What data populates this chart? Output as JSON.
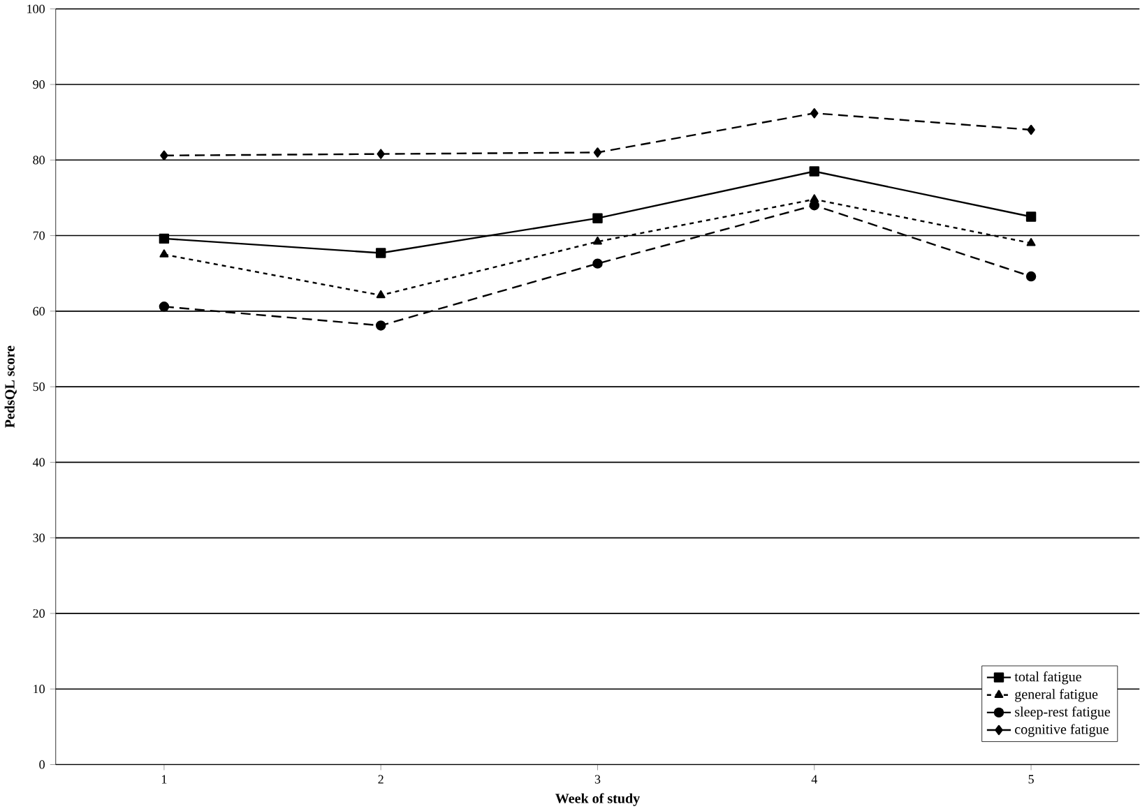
{
  "chart_data": {
    "type": "line",
    "xlabel": "Week of study",
    "ylabel": "PedsQL score",
    "categories": [
      "1",
      "2",
      "3",
      "4",
      "5"
    ],
    "ylim": [
      0,
      100
    ],
    "yticks": [
      0,
      10,
      20,
      30,
      40,
      50,
      60,
      70,
      80,
      90,
      100
    ],
    "grid": "y",
    "legend": "bottom right",
    "series": [
      {
        "name": "total fatigue",
        "color": "#000000",
        "marker": "square",
        "line_style": "solid",
        "values": [
          69.6,
          67.7,
          72.3,
          78.5,
          72.5
        ]
      },
      {
        "name": "general fatigue",
        "color": "#000000",
        "marker": "triangle",
        "line_style": "dotted",
        "values": [
          67.5,
          62.1,
          69.2,
          74.8,
          69.0
        ]
      },
      {
        "name": "sleep-rest fatigue",
        "color": "#000000",
        "marker": "circle",
        "line_style": "dashed",
        "values": [
          60.6,
          58.1,
          66.3,
          74.0,
          64.6
        ]
      },
      {
        "name": "cognitive fatigue",
        "color": "#000000",
        "marker": "diamond",
        "line_style": "dashed",
        "values": [
          80.6,
          80.8,
          81.0,
          86.2,
          84.0
        ]
      }
    ]
  }
}
